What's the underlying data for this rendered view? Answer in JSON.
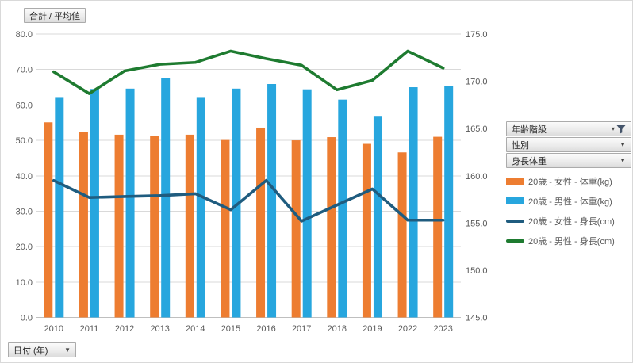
{
  "values_button_label": "合計 / 平均値",
  "axis_field_button": {
    "label": "日付 (年)"
  },
  "field_buttons": [
    {
      "label": "年齢階級",
      "filtered": true
    },
    {
      "label": "性別",
      "filtered": false
    },
    {
      "label": "身長体重",
      "filtered": false
    }
  ],
  "colors": {
    "female_weight_bar": "#ED7D31",
    "male_weight_bar": "#27A6DE",
    "female_height_line": "#1F5C7F",
    "male_height_line": "#1E7B30",
    "gridline": "#D9D9D9",
    "axis_line": "#BFBFBF",
    "axis_text": "#595959"
  },
  "chart_data": {
    "type": "combo bar+line",
    "categories": [
      "2010",
      "2011",
      "2012",
      "2013",
      "2014",
      "2015",
      "2016",
      "2017",
      "2018",
      "2019",
      "2022",
      "2023"
    ],
    "series": [
      {
        "name": "20歳 - 女性 - 体重(kg)",
        "type": "column",
        "axis": "left",
        "color": "#ED7D31",
        "values": [
          55.1,
          52.3,
          51.6,
          51.3,
          51.6,
          50.1,
          53.6,
          50.0,
          50.9,
          49.0,
          46.6,
          51.0
        ]
      },
      {
        "name": "20歳 - 男性 - 体重(kg)",
        "type": "column",
        "axis": "left",
        "color": "#27A6DE",
        "values": [
          62.0,
          64.5,
          64.6,
          67.6,
          62.0,
          64.6,
          65.9,
          64.4,
          61.5,
          56.9,
          65.0,
          65.4
        ]
      },
      {
        "name": "20歳 - 女性 - 身長(cm)",
        "type": "line",
        "axis": "right",
        "color": "#1F5C7F",
        "values": [
          159.5,
          157.7,
          157.8,
          157.9,
          158.1,
          156.4,
          159.5,
          155.2,
          156.9,
          158.6,
          155.3,
          155.3
        ]
      },
      {
        "name": "20歳 - 男性 - 身長(cm)",
        "type": "line",
        "axis": "right",
        "color": "#1E7B30",
        "values": [
          171.0,
          168.7,
          171.1,
          171.8,
          172.0,
          173.2,
          172.4,
          171.7,
          169.1,
          170.1,
          173.2,
          171.4
        ]
      }
    ],
    "left_axis": {
      "min": 0,
      "max": 80,
      "step": 10,
      "ticks": [
        "0.0",
        "10.0",
        "20.0",
        "30.0",
        "40.0",
        "50.0",
        "60.0",
        "70.0",
        "80.0"
      ]
    },
    "right_axis": {
      "min": 145,
      "max": 175,
      "step": 5,
      "ticks": [
        "145.0",
        "150.0",
        "155.0",
        "160.0",
        "165.0",
        "170.0",
        "175.0"
      ]
    },
    "grid": true,
    "legend_position": "right"
  }
}
